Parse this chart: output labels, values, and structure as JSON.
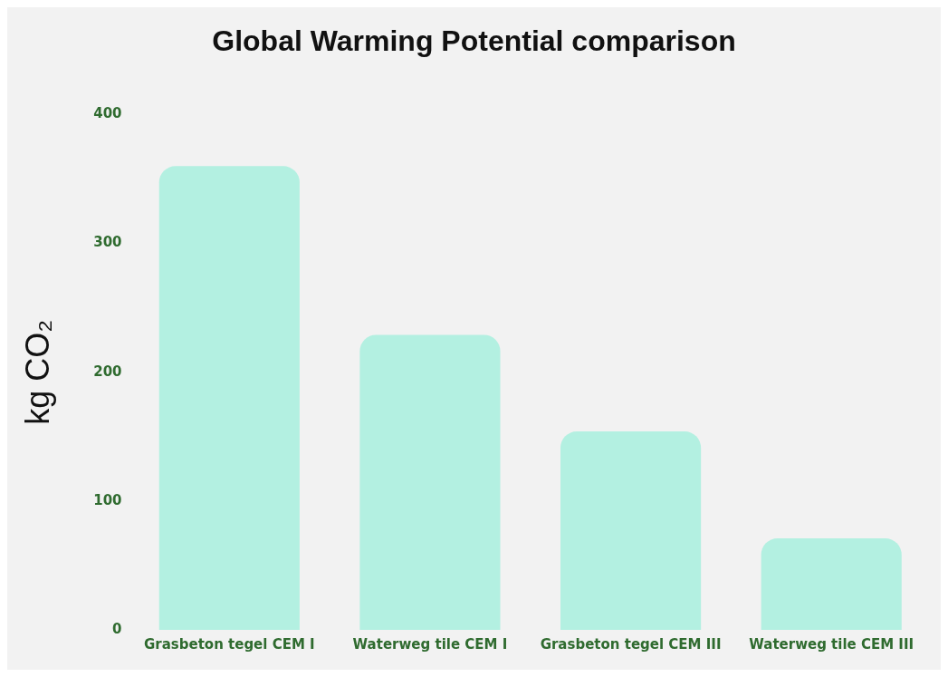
{
  "chart_data": {
    "type": "bar",
    "title": "Global Warming Potential comparison",
    "ylabel": "kg CO₂",
    "categories": [
      "Grasbeton tegel CEM I",
      "Waterweg tile CEM I",
      "Grasbeton tegel CEM III",
      "Waterweg tile CEM III"
    ],
    "values": [
      360,
      229,
      154,
      71
    ],
    "color": "#b3f0e1",
    "ylim": [
      0,
      400
    ],
    "yticks": [
      0,
      100,
      200,
      300,
      400
    ],
    "grid": false,
    "legend": false
  }
}
